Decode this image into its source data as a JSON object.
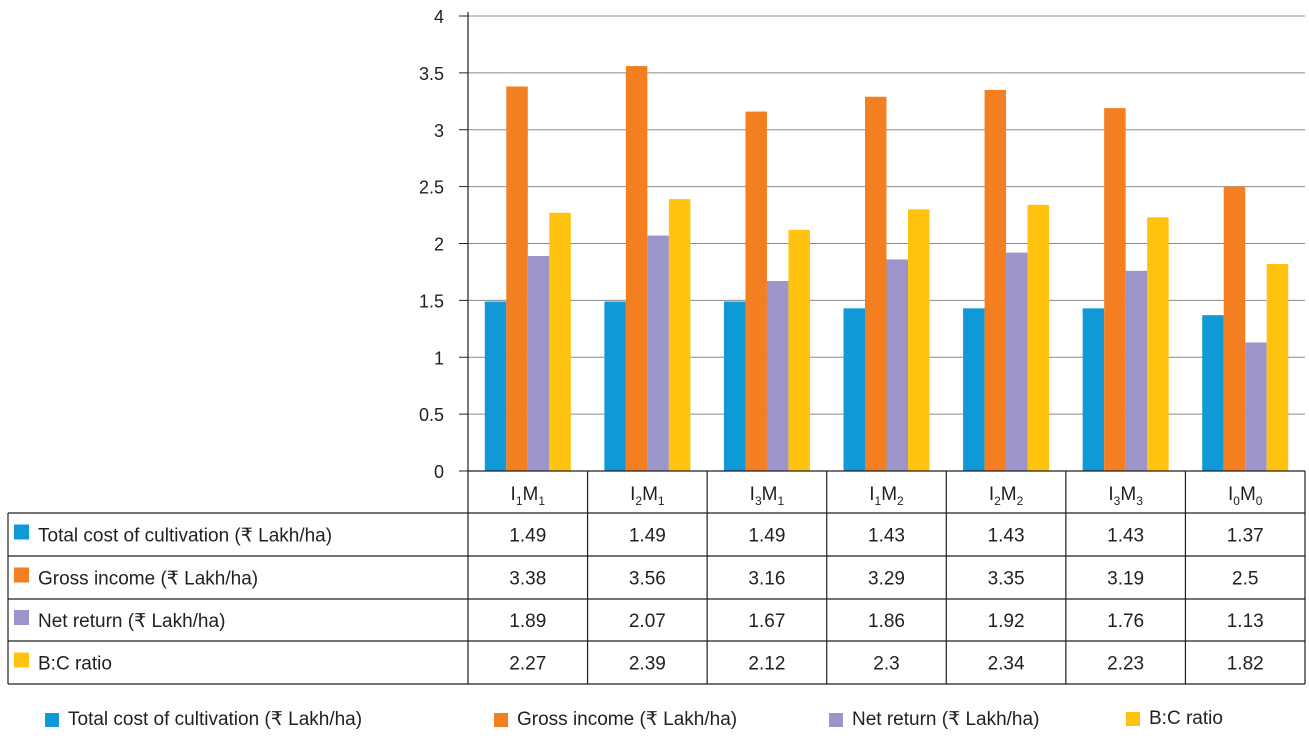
{
  "chart_data": {
    "type": "bar",
    "categories": [
      {
        "base": [
          "I",
          "M"
        ],
        "subs": [
          "1",
          "1"
        ]
      },
      {
        "base": [
          "I",
          "M"
        ],
        "subs": [
          "2",
          "1"
        ]
      },
      {
        "base": [
          "I",
          "M"
        ],
        "subs": [
          "3",
          "1"
        ]
      },
      {
        "base": [
          "I",
          "M"
        ],
        "subs": [
          "1",
          "2"
        ]
      },
      {
        "base": [
          "I",
          "M"
        ],
        "subs": [
          "2",
          "2"
        ]
      },
      {
        "base": [
          "I",
          "M"
        ],
        "subs": [
          "3",
          "3"
        ]
      },
      {
        "base": [
          "I",
          "M"
        ],
        "subs": [
          "0",
          "0"
        ]
      }
    ],
    "series": [
      {
        "name": "Total cost of cultivation (₹ Lakh/ha)",
        "color": "#0f9ad7",
        "values": [
          1.49,
          1.49,
          1.49,
          1.43,
          1.43,
          1.43,
          1.37
        ],
        "labels": [
          "1.49",
          "1.49",
          "1.49",
          "1.43",
          "1.43",
          "1.43",
          "1.37"
        ]
      },
      {
        "name": "Gross income (₹ Lakh/ha)",
        "color": "#f47f20",
        "values": [
          3.38,
          3.56,
          3.16,
          3.29,
          3.35,
          3.19,
          2.5
        ],
        "labels": [
          "3.38",
          "3.56",
          "3.16",
          "3.29",
          "3.35",
          "3.19",
          "2.5"
        ]
      },
      {
        "name": "Net return  (₹ Lakh/ha)",
        "color": "#9b95c9",
        "values": [
          1.89,
          2.07,
          1.67,
          1.86,
          1.92,
          1.76,
          1.13
        ],
        "labels": [
          "1.89",
          "2.07",
          "1.67",
          "1.86",
          "1.92",
          "1.76",
          "1.13"
        ]
      },
      {
        "name": "B:C ratio",
        "color": "#ffc20e",
        "values": [
          2.27,
          2.39,
          2.12,
          2.3,
          2.34,
          2.23,
          1.82
        ],
        "labels": [
          "2.27",
          "2.39",
          "2.12",
          "2.3",
          "2.34",
          "2.23",
          "1.82"
        ]
      }
    ],
    "ylim": [
      0,
      4
    ],
    "yticks": [
      "0",
      "0.5",
      "1",
      "1.5",
      "2",
      "2.5",
      "3",
      "3.5",
      "4"
    ],
    "grid": true,
    "legend_position": "bottom",
    "data_table": true,
    "title": "",
    "xlabel": "",
    "ylabel": ""
  }
}
